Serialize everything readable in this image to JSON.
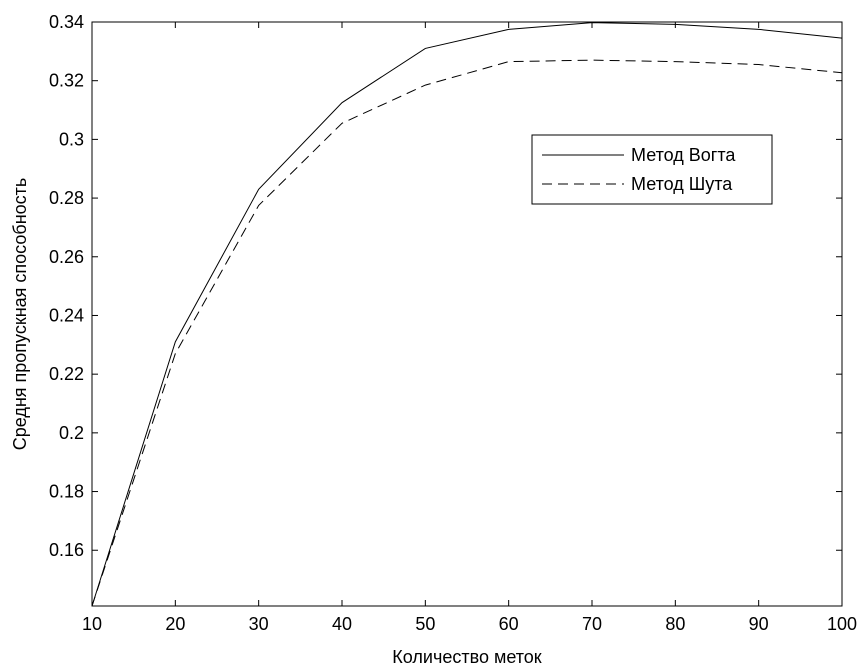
{
  "chart_data": {
    "type": "line",
    "title": "",
    "xlabel": "Количество меток",
    "ylabel": "Средня пропускная способность",
    "x": [
      10,
      20,
      30,
      40,
      50,
      60,
      70,
      80,
      90,
      100
    ],
    "xlim": [
      10,
      100
    ],
    "ylim": [
      0.141,
      0.34
    ],
    "xticks": [
      "10",
      "20",
      "30",
      "40",
      "50",
      "60",
      "70",
      "80",
      "90",
      "100"
    ],
    "yticks": [
      "0.16",
      "0.18",
      "0.2",
      "0.22",
      "0.24",
      "0.26",
      "0.28",
      "0.3",
      "0.32",
      "0.34"
    ],
    "grid": false,
    "legend_position": "upper-right",
    "series": [
      {
        "name": "Метод Вогта",
        "style": "solid",
        "color": "#000000",
        "values": [
          0.141,
          0.231,
          0.283,
          0.3125,
          0.331,
          0.3375,
          0.3398,
          0.3392,
          0.3375,
          0.3345
        ]
      },
      {
        "name": "Метод Шута",
        "style": "dashed",
        "color": "#000000",
        "values": [
          0.141,
          0.227,
          0.2775,
          0.3055,
          0.3185,
          0.3265,
          0.327,
          0.3265,
          0.3255,
          0.3227
        ]
      }
    ]
  }
}
